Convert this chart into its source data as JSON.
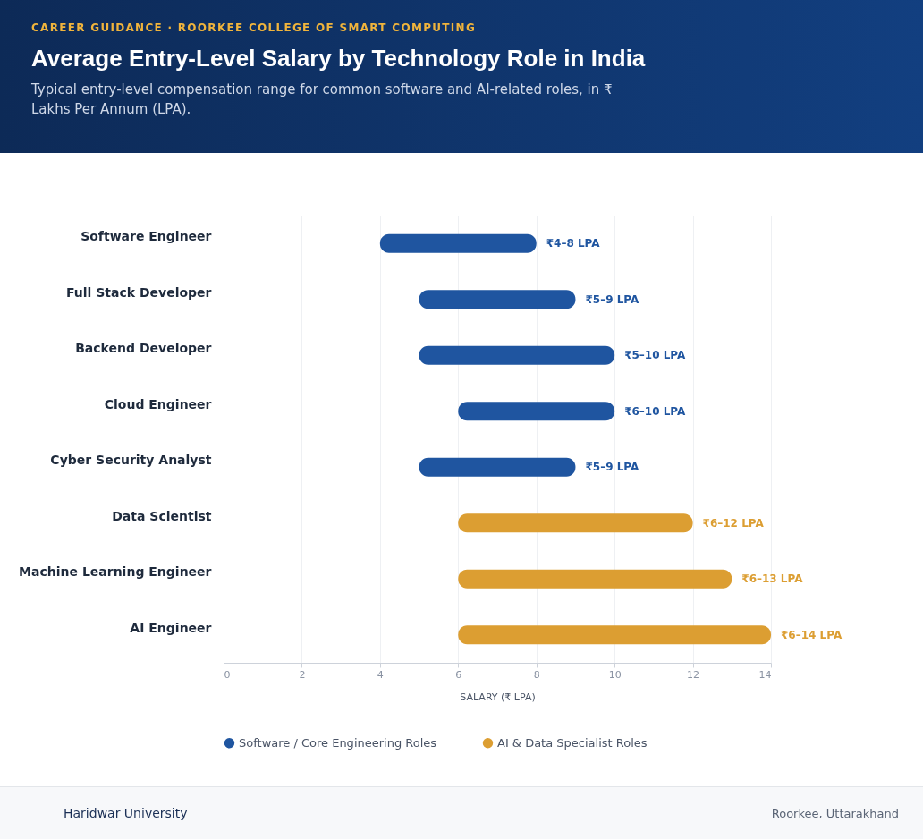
{
  "chart_data": {
    "type": "bar",
    "orientation": "horizontal",
    "title": "Average Entry-Level Salary by Technology Role in India",
    "subtitle": "Typical entry-level compensation range for common software and AI-related roles, in ₹ Lakhs Per Annum (LPA).",
    "xlabel": "SALARY (₹ LPA)",
    "annotations": [
      "CAREER GUIDANCE · ROORKEE COLLEGE OF SMART COMPUTING",
      "Haridwar University",
      "Roorkee, Uttarakhand"
    ],
    "categories": [
      "Software Engineer",
      "Full Stack Developer",
      "Backend Developer",
      "Cloud Engineer",
      "Cyber Security Analyst",
      "Data Scientist",
      "Machine Learning Engineer",
      "AI Engineer"
    ],
    "series": [
      {
        "name": "Software / Core Engineering Roles",
        "color": "#1f55a0",
        "base": [
          4,
          5,
          5,
          6,
          5,
          null,
          null,
          null
        ],
        "values": [
          4,
          4,
          5,
          4,
          4,
          null,
          null,
          null
        ],
        "value_labels": [
          "₹4–8 LPA",
          "₹5–9 LPA",
          "₹5–10 LPA",
          "₹6–10 LPA",
          "₹5–9 LPA",
          null,
          null,
          null
        ]
      },
      {
        "name": "AI & Data Specialist Roles",
        "color": "#dc9e32",
        "base": [
          null,
          null,
          null,
          null,
          null,
          6,
          6,
          6
        ],
        "values": [
          null,
          null,
          null,
          null,
          null,
          6,
          7,
          8
        ],
        "value_labels": [
          null,
          null,
          null,
          null,
          null,
          "₹6–12 LPA",
          "₹6–13 LPA",
          "₹6–14 LPA"
        ]
      }
    ],
    "xlim": [
      0,
      14
    ],
    "xticks": [
      0,
      2,
      4,
      6,
      8,
      10,
      12,
      14
    ],
    "grid": "x",
    "legend": "bottom"
  }
}
